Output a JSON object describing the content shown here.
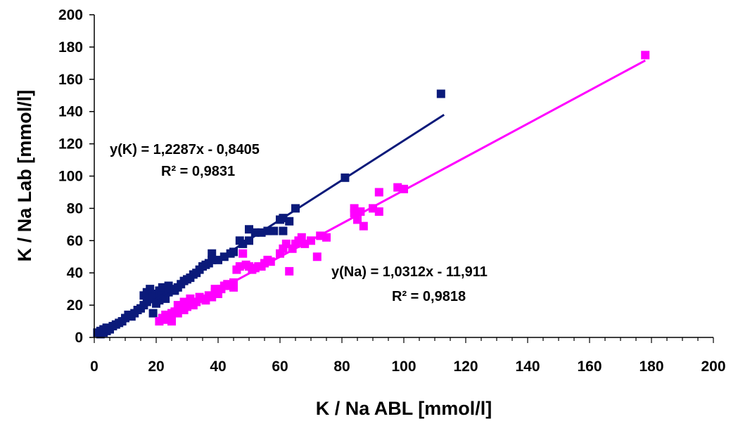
{
  "chart_data": {
    "type": "scatter",
    "xlabel": "K / Na ABL [mmol/l]",
    "ylabel": "K / Na Lab [mmol/l]",
    "xlim": [
      0,
      200
    ],
    "ylim": [
      0,
      200
    ],
    "x_ticks": [
      0,
      20,
      40,
      60,
      80,
      100,
      120,
      140,
      160,
      180,
      200
    ],
    "y_ticks": [
      0,
      20,
      40,
      60,
      80,
      100,
      120,
      140,
      160,
      180,
      200
    ],
    "grid": false,
    "legend": "none",
    "series": [
      {
        "color": "#0b1a7a",
        "marker": "square",
        "trendline": {
          "slope": 1.2287,
          "intercept": -0.8405,
          "x_range": [
            2,
            113
          ]
        },
        "equation": "y(K) = 1,2287x - 0,8405",
        "r_squared": "R² = 0,9831",
        "points": [
          [
            1,
            3
          ],
          [
            2,
            2
          ],
          [
            2,
            4
          ],
          [
            3,
            3
          ],
          [
            3,
            5
          ],
          [
            4,
            4
          ],
          [
            4,
            6
          ],
          [
            5,
            5
          ],
          [
            6,
            7
          ],
          [
            7,
            8
          ],
          [
            8,
            9
          ],
          [
            9,
            10
          ],
          [
            10,
            12
          ],
          [
            11,
            14
          ],
          [
            12,
            13
          ],
          [
            13,
            15
          ],
          [
            14,
            17
          ],
          [
            15,
            18
          ],
          [
            16,
            20
          ],
          [
            16,
            26
          ],
          [
            17,
            22
          ],
          [
            17,
            28
          ],
          [
            18,
            24
          ],
          [
            18,
            30
          ],
          [
            19,
            15
          ],
          [
            19,
            25
          ],
          [
            20,
            27
          ],
          [
            20,
            21
          ],
          [
            21,
            23
          ],
          [
            21,
            29
          ],
          [
            22,
            26
          ],
          [
            22,
            31
          ],
          [
            23,
            24
          ],
          [
            24,
            28
          ],
          [
            24,
            32
          ],
          [
            25,
            30
          ],
          [
            26,
            29
          ],
          [
            27,
            31
          ],
          [
            28,
            33
          ],
          [
            29,
            35
          ],
          [
            30,
            36
          ],
          [
            31,
            37
          ],
          [
            32,
            39
          ],
          [
            33,
            40
          ],
          [
            34,
            42
          ],
          [
            35,
            44
          ],
          [
            36,
            45
          ],
          [
            37,
            46
          ],
          [
            38,
            52
          ],
          [
            38,
            48
          ],
          [
            40,
            48
          ],
          [
            42,
            50
          ],
          [
            44,
            52
          ],
          [
            45,
            53
          ],
          [
            47,
            60
          ],
          [
            48,
            58
          ],
          [
            50,
            67
          ],
          [
            50,
            60
          ],
          [
            52,
            65
          ],
          [
            54,
            65
          ],
          [
            56,
            66
          ],
          [
            58,
            66
          ],
          [
            60,
            73
          ],
          [
            61,
            74
          ],
          [
            61,
            66
          ],
          [
            63,
            72
          ],
          [
            65,
            80
          ],
          [
            81,
            99
          ],
          [
            112,
            151
          ]
        ]
      },
      {
        "color": "#ff00ff",
        "marker": "square",
        "trendline": {
          "slope": 1.0312,
          "intercept": -11.911,
          "x_range": [
            20,
            178
          ]
        },
        "equation": "y(Na) = 1,0312x - 11,911",
        "r_squared": "R² = 0,9818",
        "points": [
          [
            21,
            10
          ],
          [
            22,
            12
          ],
          [
            23,
            11
          ],
          [
            23,
            14
          ],
          [
            24,
            13
          ],
          [
            25,
            10
          ],
          [
            25,
            15
          ],
          [
            26,
            16
          ],
          [
            27,
            15
          ],
          [
            27,
            20
          ],
          [
            28,
            18
          ],
          [
            29,
            17
          ],
          [
            29,
            22
          ],
          [
            30,
            19
          ],
          [
            31,
            21
          ],
          [
            31,
            24
          ],
          [
            32,
            20
          ],
          [
            33,
            22
          ],
          [
            34,
            25
          ],
          [
            35,
            24
          ],
          [
            36,
            23
          ],
          [
            37,
            26
          ],
          [
            38,
            25
          ],
          [
            39,
            28
          ],
          [
            39,
            30
          ],
          [
            40,
            27
          ],
          [
            41,
            30
          ],
          [
            42,
            32
          ],
          [
            43,
            33
          ],
          [
            44,
            32
          ],
          [
            45,
            31
          ],
          [
            45,
            34
          ],
          [
            46,
            42
          ],
          [
            47,
            44
          ],
          [
            48,
            52
          ],
          [
            49,
            45
          ],
          [
            50,
            44
          ],
          [
            51,
            42
          ],
          [
            52,
            43
          ],
          [
            53,
            44
          ],
          [
            54,
            44
          ],
          [
            55,
            46
          ],
          [
            56,
            48
          ],
          [
            57,
            47
          ],
          [
            60,
            52
          ],
          [
            61,
            55
          ],
          [
            62,
            58
          ],
          [
            63,
            41
          ],
          [
            64,
            55
          ],
          [
            65,
            58
          ],
          [
            66,
            60
          ],
          [
            67,
            62
          ],
          [
            68,
            58
          ],
          [
            70,
            60
          ],
          [
            72,
            50
          ],
          [
            73,
            63
          ],
          [
            75,
            62
          ],
          [
            84,
            80
          ],
          [
            84,
            77
          ],
          [
            85,
            76
          ],
          [
            85,
            73
          ],
          [
            86,
            78
          ],
          [
            87,
            69
          ],
          [
            90,
            80
          ],
          [
            92,
            90
          ],
          [
            92,
            78
          ],
          [
            98,
            93
          ],
          [
            100,
            92
          ],
          [
            178,
            175
          ]
        ]
      }
    ]
  }
}
